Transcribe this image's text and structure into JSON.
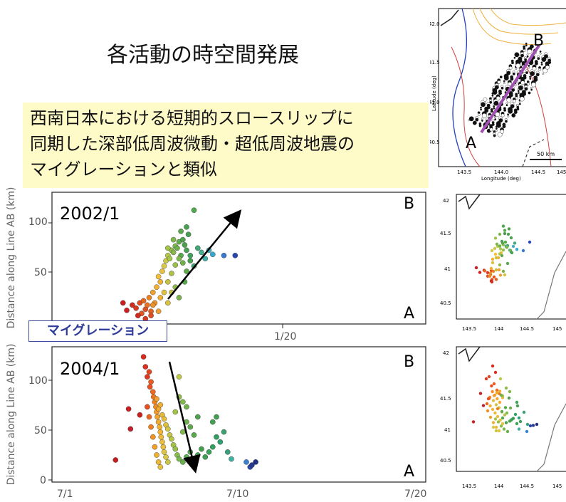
{
  "title": "各活動の時空間発展",
  "callout": {
    "lines": [
      "西南日本における短期的スロースリップに",
      "同期した深部低周波微動・超低周波地震の",
      "マイグレーションと類似"
    ]
  },
  "migration_label": "マイグレーション",
  "top_map": {
    "label_A": "A",
    "label_B": "B",
    "ylabel": "Latitude (deg)",
    "xlabel": "Longitude (deg)",
    "yticks": [
      "42.0",
      "41.5",
      "41.0",
      "40.5"
    ],
    "xticks": [
      "143.5",
      "144.0",
      "144.5",
      "145"
    ],
    "scale": "50 km"
  },
  "small_maps": {
    "yticks": [
      "42",
      "41.5",
      "41",
      "40.5"
    ],
    "xticks": [
      "143.5",
      "144",
      "144.5",
      "145"
    ]
  },
  "chart_data": [
    {
      "type": "scatter",
      "panel_label": "2002/1",
      "ylabel": "Distance along Line AB (km)",
      "yticks": [
        "50",
        "100"
      ],
      "xticks": [
        "1/20"
      ],
      "label_top": "B",
      "label_bottom": "A",
      "arrow": "A→B",
      "points": [
        [
          0.19,
          20,
          "#c81e1e"
        ],
        [
          0.2,
          13,
          "#cc2020"
        ],
        [
          0.215,
          18,
          "#d22a1e"
        ],
        [
          0.225,
          15,
          "#d83a20"
        ],
        [
          0.235,
          20,
          "#e04a1c"
        ],
        [
          0.24,
          10,
          "#e05520"
        ],
        [
          0.245,
          22,
          "#e86820"
        ],
        [
          0.25,
          14,
          "#e05020"
        ],
        [
          0.255,
          18,
          "#e87020"
        ],
        [
          0.26,
          25,
          "#ec8020"
        ],
        [
          0.265,
          12,
          "#e46020"
        ],
        [
          0.27,
          30,
          "#f0a030"
        ],
        [
          0.275,
          20,
          "#ee9028"
        ],
        [
          0.28,
          35,
          "#f4b030"
        ],
        [
          0.285,
          45,
          "#f4c038"
        ],
        [
          0.29,
          40,
          "#f0b030"
        ],
        [
          0.295,
          50,
          "#e8c040"
        ],
        [
          0.3,
          55,
          "#d8c848"
        ],
        [
          0.305,
          60,
          "#c8c848"
        ],
        [
          0.31,
          65,
          "#b8c848"
        ],
        [
          0.315,
          62,
          "#a8c848"
        ],
        [
          0.32,
          70,
          "#98c04a"
        ],
        [
          0.325,
          68,
          "#88b84a"
        ],
        [
          0.33,
          74,
          "#7cb84c"
        ],
        [
          0.335,
          72,
          "#6cb04c"
        ],
        [
          0.34,
          78,
          "#60a84c"
        ],
        [
          0.345,
          65,
          "#58a84c"
        ],
        [
          0.35,
          80,
          "#50a04c"
        ],
        [
          0.355,
          75,
          "#4aa04e"
        ],
        [
          0.36,
          70,
          "#48a050"
        ],
        [
          0.365,
          85,
          "#489c54"
        ],
        [
          0.37,
          65,
          "#40a060"
        ],
        [
          0.38,
          55,
          "#3ca070"
        ],
        [
          0.39,
          72,
          "#40a878"
        ],
        [
          0.4,
          68,
          "#48b090"
        ],
        [
          0.41,
          62,
          "#40b0a8"
        ],
        [
          0.42,
          70,
          "#3ab0c0"
        ],
        [
          0.43,
          66,
          "#38a8d0"
        ],
        [
          0.46,
          65,
          "#3878d0"
        ],
        [
          0.49,
          65,
          "#2848b0"
        ],
        [
          0.3,
          30,
          "#e0c040"
        ],
        [
          0.31,
          40,
          "#c8c040"
        ],
        [
          0.32,
          48,
          "#b0c048"
        ],
        [
          0.33,
          56,
          "#98c04a"
        ],
        [
          0.34,
          62,
          "#80b84c"
        ],
        [
          0.35,
          58,
          "#70b04c"
        ],
        [
          0.36,
          50,
          "#60a84c"
        ],
        [
          0.33,
          35,
          "#90b848"
        ],
        [
          0.34,
          25,
          "#78b04a"
        ],
        [
          0.355,
          40,
          "#58a84c"
        ],
        [
          0.37,
          60,
          "#48a050"
        ],
        [
          0.38,
          108,
          "#50a84e"
        ],
        [
          0.31,
          72,
          "#a0c448"
        ],
        [
          0.325,
          80,
          "#80b84c"
        ],
        [
          0.345,
          88,
          "#58a84c"
        ],
        [
          0.36,
          92,
          "#48a050"
        ],
        [
          0.285,
          12,
          "#f0a030"
        ],
        [
          0.29,
          25,
          "#f0b030"
        ],
        [
          0.27,
          18,
          "#ec9028"
        ],
        [
          0.265,
          8,
          "#e05020"
        ],
        [
          0.25,
          5,
          "#d83a20"
        ],
        [
          0.23,
          8,
          "#d22a1e"
        ],
        [
          0.31,
          20,
          "#d8c040"
        ],
        [
          0.32,
          30,
          "#c0c040"
        ]
      ]
    },
    {
      "type": "scatter",
      "panel_label": "2004/1",
      "ylabel": "Distance along Line AB (km)",
      "yticks": [
        "0",
        "50",
        "100"
      ],
      "xticks": [
        "7/1",
        "7/10",
        "7/20"
      ],
      "label_top": "B",
      "label_bottom": "A",
      "arrow": "B→A",
      "points": [
        [
          0.17,
          17,
          "#c81e1e"
        ],
        [
          0.205,
          68,
          "#c82020"
        ],
        [
          0.21,
          48,
          "#c02030"
        ],
        [
          0.235,
          62,
          "#cc2020"
        ],
        [
          0.245,
          120,
          "#d82a1e"
        ],
        [
          0.25,
          110,
          "#dc3020"
        ],
        [
          0.255,
          100,
          "#e03820"
        ],
        [
          0.26,
          105,
          "#e44420"
        ],
        [
          0.262,
          90,
          "#e85020"
        ],
        [
          0.265,
          95,
          "#ec5a20"
        ],
        [
          0.27,
          85,
          "#ee6820"
        ],
        [
          0.272,
          80,
          "#f07420"
        ],
        [
          0.275,
          75,
          "#f28020"
        ],
        [
          0.278,
          70,
          "#f48c24"
        ],
        [
          0.28,
          65,
          "#f49828"
        ],
        [
          0.282,
          60,
          "#f4a42c"
        ],
        [
          0.285,
          55,
          "#f4ac30"
        ],
        [
          0.288,
          50,
          "#f4b030"
        ],
        [
          0.29,
          45,
          "#f4b434"
        ],
        [
          0.292,
          40,
          "#f0b838"
        ],
        [
          0.295,
          35,
          "#ecbc3c"
        ],
        [
          0.298,
          30,
          "#e8c040"
        ],
        [
          0.3,
          25,
          "#e0c444"
        ],
        [
          0.305,
          20,
          "#d8c848"
        ],
        [
          0.31,
          15,
          "#c8c848"
        ],
        [
          0.28,
          78,
          "#f0a030"
        ],
        [
          0.285,
          68,
          "#f0a830"
        ],
        [
          0.29,
          72,
          "#ecb034"
        ],
        [
          0.295,
          62,
          "#e8b838"
        ],
        [
          0.3,
          58,
          "#e4bc3c"
        ],
        [
          0.305,
          52,
          "#dcc040"
        ],
        [
          0.31,
          48,
          "#d0c444"
        ],
        [
          0.315,
          42,
          "#c4c448"
        ],
        [
          0.32,
          38,
          "#b8c448"
        ],
        [
          0.325,
          32,
          "#a8c448"
        ],
        [
          0.33,
          28,
          "#98c04a"
        ],
        [
          0.335,
          22,
          "#88bc4a"
        ],
        [
          0.34,
          18,
          "#78b84c"
        ],
        [
          0.35,
          15,
          "#68b04c"
        ],
        [
          0.36,
          20,
          "#58a84c"
        ],
        [
          0.37,
          25,
          "#50a84c"
        ],
        [
          0.38,
          18,
          "#48a04e"
        ],
        [
          0.39,
          22,
          "#44a050"
        ],
        [
          0.4,
          28,
          "#40a050"
        ],
        [
          0.41,
          20,
          "#3ca054"
        ],
        [
          0.42,
          25,
          "#38a058"
        ],
        [
          0.43,
          30,
          "#34a05c"
        ],
        [
          0.44,
          40,
          "#30a060"
        ],
        [
          0.45,
          35,
          "#2ca070"
        ],
        [
          0.35,
          45,
          "#80b84c"
        ],
        [
          0.36,
          55,
          "#70b04c"
        ],
        [
          0.37,
          50,
          "#60a84c"
        ],
        [
          0.38,
          42,
          "#58a84c"
        ],
        [
          0.39,
          60,
          "#50a04c"
        ],
        [
          0.33,
          65,
          "#a0c448"
        ],
        [
          0.34,
          80,
          "#90bc48"
        ],
        [
          0.35,
          75,
          "#80b84a"
        ],
        [
          0.36,
          70,
          "#70b04c"
        ],
        [
          0.34,
          100,
          "#c0c848"
        ],
        [
          0.44,
          60,
          "#40a050"
        ],
        [
          0.43,
          55,
          "#44a050"
        ],
        [
          0.46,
          45,
          "#3ca070"
        ],
        [
          0.47,
          25,
          "#38a078"
        ],
        [
          0.48,
          18,
          "#40b0a0"
        ],
        [
          0.52,
          15,
          "#3a80d0"
        ],
        [
          0.53,
          10,
          "#2848b0"
        ],
        [
          0.535,
          12,
          "#283890"
        ],
        [
          0.545,
          15,
          "#203080"
        ],
        [
          0.27,
          40,
          "#f09020"
        ],
        [
          0.275,
          30,
          "#f0a028"
        ],
        [
          0.28,
          22,
          "#f0b030"
        ],
        [
          0.285,
          15,
          "#ecb838"
        ],
        [
          0.29,
          10,
          "#e8c040"
        ],
        [
          0.265,
          50,
          "#ec8020"
        ],
        [
          0.26,
          60,
          "#e86820"
        ],
        [
          0.255,
          70,
          "#e45020"
        ]
      ]
    }
  ]
}
